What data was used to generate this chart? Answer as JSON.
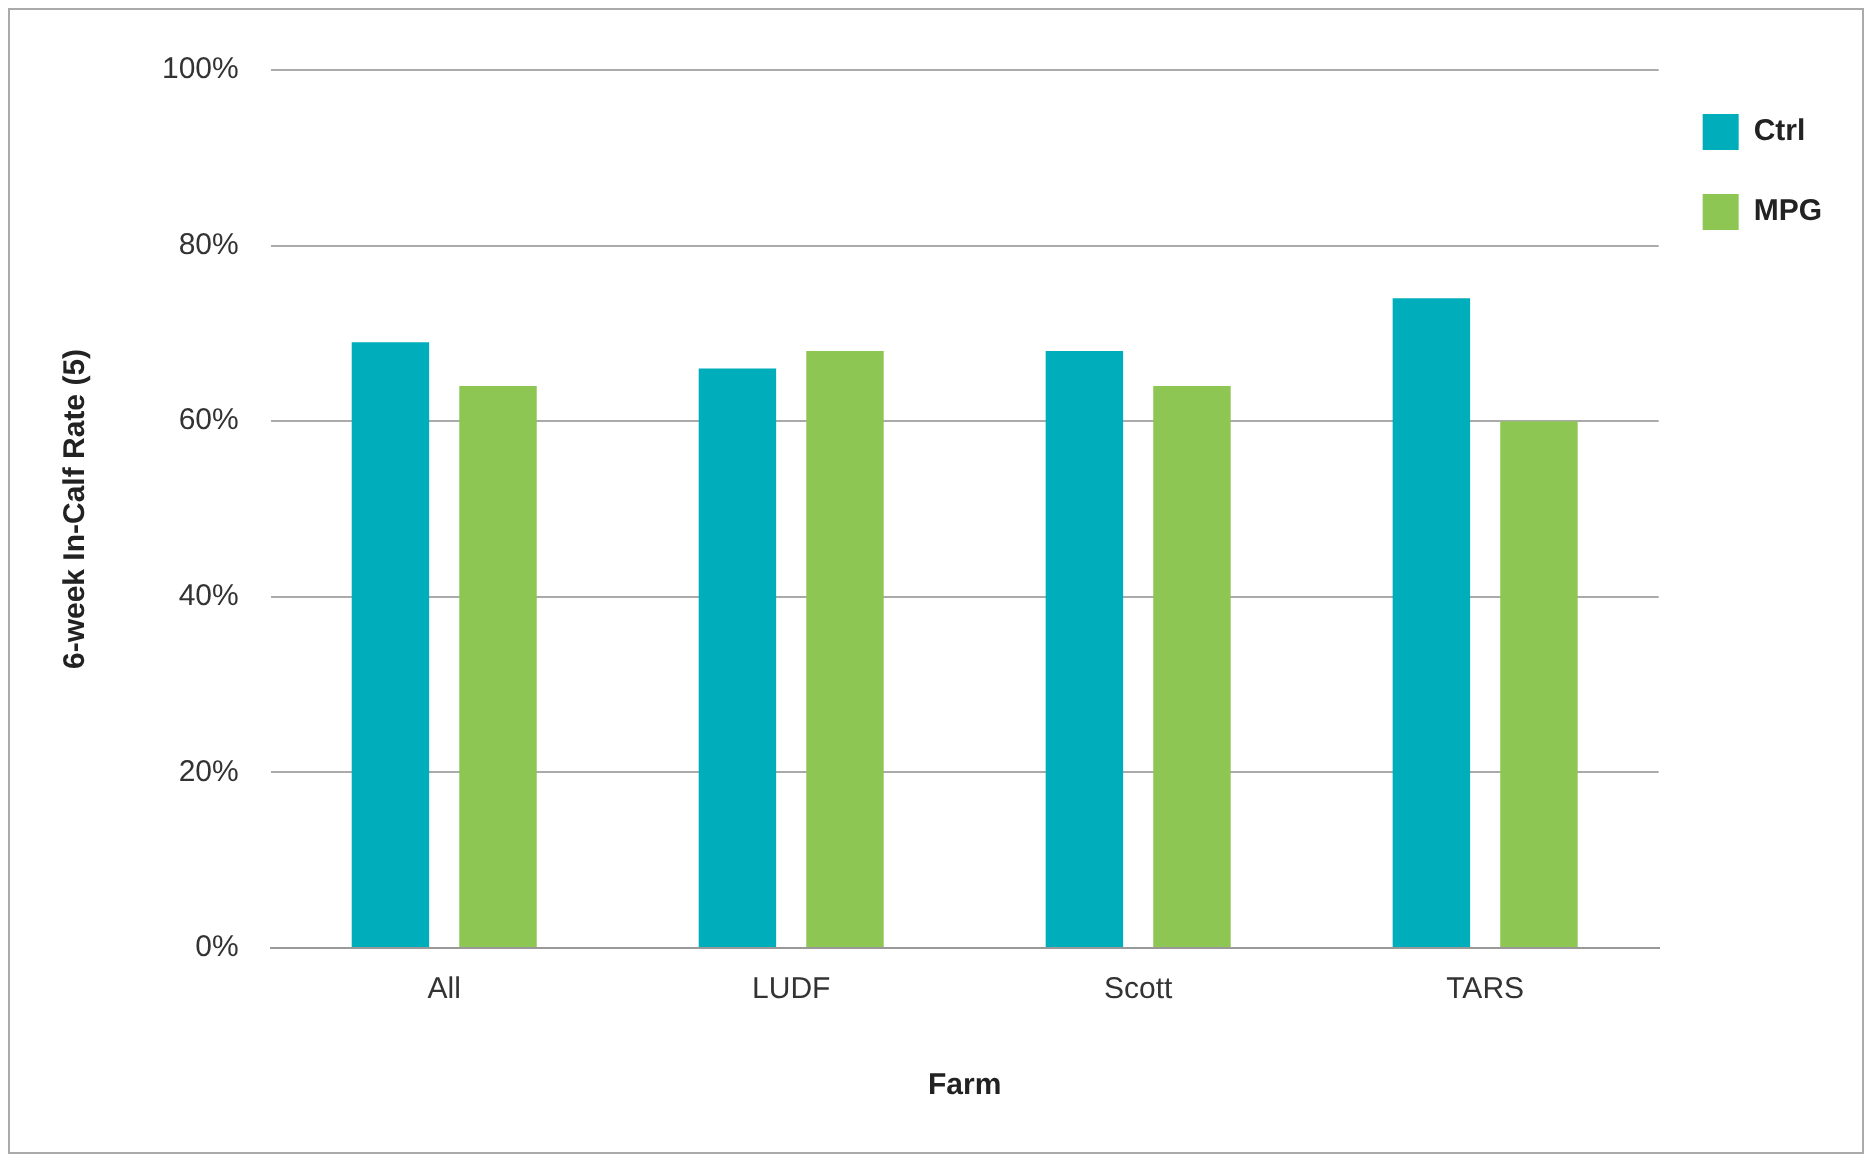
{
  "chart_data": {
    "type": "bar",
    "xlabel": "Farm",
    "ylabel": "6-week In-Calf Rate (5)",
    "categories": [
      "All",
      "LUDF",
      "Scott",
      "TARS"
    ],
    "series": [
      {
        "name": "Ctrl",
        "color": "#00adbb",
        "values": [
          69,
          66,
          68,
          74
        ]
      },
      {
        "name": "MPG",
        "color": "#8dc653",
        "values": [
          64,
          68,
          64,
          60
        ]
      }
    ],
    "ylim": [
      0,
      100
    ],
    "yticks": [
      {
        "value": 0,
        "label": "0%"
      },
      {
        "value": 20,
        "label": "20%"
      },
      {
        "value": 40,
        "label": "40%"
      },
      {
        "value": 60,
        "label": "60%"
      },
      {
        "value": 80,
        "label": "80%"
      },
      {
        "value": 100,
        "label": "100%"
      }
    ],
    "grid": "y",
    "legend": "top right"
  }
}
